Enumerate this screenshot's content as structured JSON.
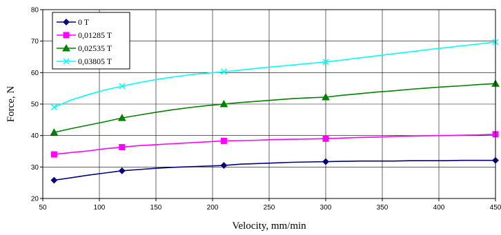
{
  "chart_data": {
    "type": "line",
    "title": "",
    "xlabel": "Velocity, mm/min",
    "ylabel": "Force, N",
    "xlim": [
      50,
      450
    ],
    "ylim": [
      20,
      80
    ],
    "xticks": [
      50,
      100,
      150,
      200,
      250,
      300,
      350,
      400,
      450
    ],
    "yticks": [
      20,
      30,
      40,
      50,
      60,
      70,
      80
    ],
    "grid": "horizontal and vertical",
    "legend_placement": "top-left",
    "series": [
      {
        "name": "0 T",
        "color": "#000080",
        "marker": "diamond",
        "x": [
          60,
          120,
          210,
          300,
          450
        ],
        "y": [
          25.8,
          28.8,
          30.5,
          31.7,
          32.1
        ],
        "curve_x": [
          60,
          75,
          90,
          105,
          120,
          135,
          150,
          165,
          180,
          195,
          210,
          225,
          240,
          255,
          270,
          285,
          300,
          315,
          330,
          345,
          360,
          375,
          390,
          405,
          420,
          435,
          450
        ],
        "curve_y": [
          25.8,
          26.6,
          27.4,
          28.1,
          28.8,
          29.2,
          29.6,
          29.9,
          30.1,
          30.3,
          30.5,
          30.9,
          31.1,
          31.3,
          31.5,
          31.6,
          31.7,
          31.8,
          31.9,
          31.9,
          31.9,
          32.0,
          32.0,
          32.0,
          32.1,
          32.1,
          32.1
        ]
      },
      {
        "name": "0,01285 T",
        "color": "#ff00ff",
        "marker": "square",
        "x": [
          60,
          120,
          210,
          300,
          450
        ],
        "y": [
          34.0,
          36.3,
          38.3,
          39.0,
          40.4
        ],
        "curve_x": [
          60,
          75,
          90,
          105,
          120,
          135,
          150,
          165,
          180,
          195,
          210,
          225,
          240,
          255,
          270,
          285,
          300,
          315,
          330,
          345,
          360,
          375,
          390,
          405,
          420,
          435,
          450
        ],
        "curve_y": [
          34.0,
          34.6,
          35.1,
          35.8,
          36.3,
          36.8,
          37.1,
          37.4,
          37.7,
          38.0,
          38.3,
          38.4,
          38.5,
          38.7,
          38.8,
          38.9,
          39.0,
          39.2,
          39.4,
          39.5,
          39.7,
          39.8,
          39.9,
          40.0,
          40.1,
          40.2,
          40.4
        ]
      },
      {
        "name": "0,02535 T",
        "color": "#008000",
        "marker": "triangle",
        "x": [
          60,
          120,
          210,
          300,
          450
        ],
        "y": [
          41.0,
          45.6,
          50.0,
          52.2,
          56.5
        ],
        "curve_x": [
          60,
          75,
          90,
          105,
          120,
          135,
          150,
          165,
          180,
          195,
          210,
          225,
          240,
          255,
          270,
          285,
          300,
          315,
          330,
          345,
          360,
          375,
          390,
          405,
          420,
          435,
          450
        ],
        "curve_y": [
          41.0,
          42.2,
          43.3,
          44.4,
          45.6,
          46.5,
          47.4,
          48.2,
          48.9,
          49.5,
          50.0,
          50.5,
          50.9,
          51.3,
          51.7,
          52.0,
          52.2,
          52.8,
          53.3,
          53.8,
          54.2,
          54.7,
          55.1,
          55.5,
          55.8,
          56.2,
          56.5
        ]
      },
      {
        "name": "0,03805 T",
        "color": "#00ffff",
        "marker": "x",
        "x": [
          60,
          120,
          210,
          300,
          450
        ],
        "y": [
          49.0,
          55.7,
          60.3,
          63.4,
          69.7
        ],
        "curve_x": [
          60,
          75,
          90,
          105,
          120,
          135,
          150,
          165,
          180,
          195,
          210,
          225,
          240,
          255,
          270,
          285,
          300,
          315,
          330,
          345,
          360,
          375,
          390,
          405,
          420,
          435,
          450
        ],
        "curve_y": [
          49.0,
          51.3,
          53.0,
          54.5,
          55.7,
          56.8,
          57.8,
          58.6,
          59.3,
          59.8,
          60.3,
          60.8,
          61.4,
          61.9,
          62.4,
          62.9,
          63.4,
          64.0,
          64.7,
          65.3,
          66.0,
          66.6,
          67.3,
          67.9,
          68.5,
          69.1,
          69.7
        ]
      }
    ]
  }
}
